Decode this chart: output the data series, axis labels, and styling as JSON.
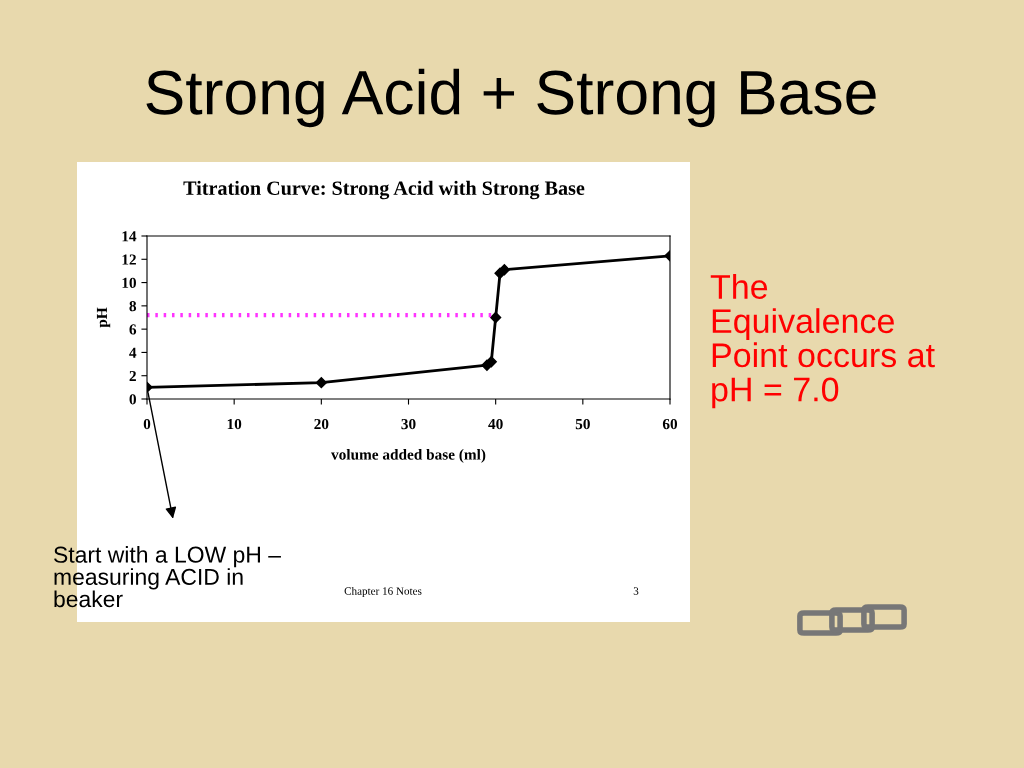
{
  "chart_data": {
    "type": "line",
    "title": "Strong Acid + Strong Base",
    "subtitle": "Titration Curve: Strong Acid with Strong Base",
    "xlabel": "volume added base (ml)",
    "ylabel": "pH",
    "x": [
      0,
      20,
      39,
      39.5,
      40,
      40.5,
      41,
      60
    ],
    "series": [
      {
        "color": "#000000",
        "values": [
          1,
          1.4,
          2.9,
          3.2,
          7,
          10.8,
          11.1,
          12.3
        ]
      },
      {
        "type": "line",
        "color": "#ff33ff",
        "x": [
          0,
          39.5
        ],
        "values": [
          7.2,
          7.2
        ],
        "line_style": "dotted",
        "marker": "none"
      }
    ],
    "xlim": [
      0,
      60
    ],
    "xticks": [
      0,
      10,
      20,
      30,
      40,
      50,
      60
    ],
    "ylim": [
      0,
      14
    ],
    "yticks": [
      0,
      2,
      4,
      6,
      8,
      10,
      12,
      14
    ],
    "marker": "diamond",
    "line_style": "solid",
    "grid": false,
    "legend": false,
    "annotations": [
      "The Equivalence Point occurs at pH = 7.0",
      {
        "text": "Start with a LOW pH – measuring ACID in beaker",
        "x": 0,
        "y": 1
      },
      "Chapter 16 Notes",
      "3"
    ]
  }
}
